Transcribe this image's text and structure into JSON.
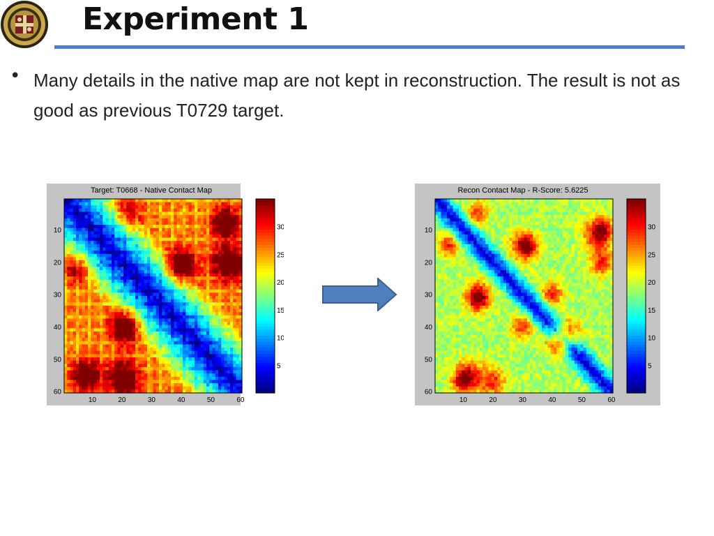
{
  "slide": {
    "title": "Experiment 1",
    "bullet": "Many details in the native map are not kept in reconstruction. The result is not as good as previous T0729 target."
  },
  "colors": {
    "rule": "#4a7fcc",
    "arrow_fill": "#4f7fbf",
    "arrow_stroke": "#3a5f92",
    "panel_bg": "#c4c4c4"
  },
  "icons": {
    "logo": "university-seal-icon",
    "arrow": "right-arrow-icon"
  },
  "chart_data": [
    {
      "type": "heatmap",
      "title": "Target: T0668 - Native Contact Map",
      "x_ticks": [
        "10",
        "20",
        "30",
        "40",
        "50",
        "60"
      ],
      "y_ticks": [
        "10",
        "20",
        "30",
        "40",
        "50",
        "60"
      ],
      "xlim": [
        1,
        60
      ],
      "ylim": [
        1,
        60
      ],
      "colorbar": {
        "ticks": [
          "5",
          "10",
          "15",
          "20",
          "25",
          "30"
        ],
        "range": [
          0,
          35
        ],
        "colormap": "jet"
      }
    },
    {
      "type": "heatmap",
      "title": "Recon Contact Map - R-Score: 5.6225",
      "x_ticks": [
        "10",
        "20",
        "30",
        "40",
        "50",
        "60"
      ],
      "y_ticks": [
        "10",
        "20",
        "30",
        "40",
        "50",
        "60"
      ],
      "xlim": [
        1,
        60
      ],
      "ylim": [
        1,
        60
      ],
      "colorbar": {
        "ticks": [
          "5",
          "10",
          "15",
          "20",
          "25",
          "30"
        ],
        "range": [
          0,
          35
        ],
        "colormap": "jet"
      }
    }
  ]
}
